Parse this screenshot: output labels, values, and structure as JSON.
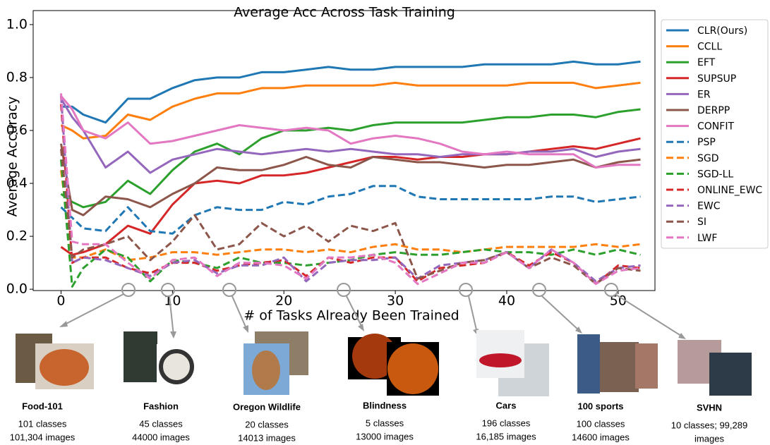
{
  "chart_data": {
    "type": "line",
    "title": "Average Acc Across Task Training",
    "xlabel": "# of Tasks Already Been Trained",
    "ylabel": "Average Accuracy",
    "x": [
      0,
      1,
      2,
      4,
      6,
      8,
      10,
      12,
      14,
      16,
      18,
      20,
      22,
      24,
      26,
      28,
      30,
      32,
      34,
      36,
      38,
      40,
      42,
      44,
      46,
      48,
      50,
      52
    ],
    "xlim": [
      -2.5,
      53.3
    ],
    "ylim": [
      -0.005,
      1.053
    ],
    "xticks": [
      0,
      10,
      20,
      30,
      40,
      50
    ],
    "yticks": [
      {
        "value": 0,
        "label": "0.0"
      },
      {
        "value": 0.2,
        "label": "0.2"
      },
      {
        "value": 0.4,
        "label": "0.4"
      },
      {
        "value": 0.6,
        "label": "0.6"
      },
      {
        "value": 0.8,
        "label": "0.8"
      },
      {
        "value": 1,
        "label": "1.0"
      }
    ],
    "legend": "outside-right",
    "series": [
      {
        "name": "CLR(Ours)",
        "color": "#1f77b4",
        "dashed": false,
        "values": [
          0.69,
          0.69,
          0.66,
          0.63,
          0.72,
          0.72,
          0.76,
          0.79,
          0.8,
          0.8,
          0.82,
          0.82,
          0.83,
          0.84,
          0.83,
          0.83,
          0.84,
          0.84,
          0.84,
          0.84,
          0.85,
          0.85,
          0.85,
          0.85,
          0.86,
          0.85,
          0.85,
          0.86
        ]
      },
      {
        "name": "CCLL",
        "color": "#ff7f0e",
        "dashed": false,
        "values": [
          0.62,
          0.6,
          0.57,
          0.58,
          0.66,
          0.64,
          0.69,
          0.72,
          0.74,
          0.74,
          0.76,
          0.76,
          0.77,
          0.77,
          0.77,
          0.77,
          0.78,
          0.77,
          0.77,
          0.77,
          0.77,
          0.77,
          0.78,
          0.78,
          0.78,
          0.76,
          0.77,
          0.78
        ]
      },
      {
        "name": "EFT",
        "color": "#2ca02c",
        "dashed": false,
        "values": [
          0.36,
          0.33,
          0.31,
          0.33,
          0.41,
          0.36,
          0.45,
          0.52,
          0.55,
          0.51,
          0.57,
          0.6,
          0.6,
          0.61,
          0.6,
          0.62,
          0.63,
          0.63,
          0.63,
          0.63,
          0.64,
          0.65,
          0.65,
          0.66,
          0.66,
          0.65,
          0.67,
          0.68
        ]
      },
      {
        "name": "SUPSUP",
        "color": "#d62728",
        "dashed": false,
        "values": [
          0.16,
          0.13,
          0.14,
          0.17,
          0.24,
          0.21,
          0.32,
          0.4,
          0.41,
          0.4,
          0.43,
          0.43,
          0.44,
          0.46,
          0.48,
          0.5,
          0.5,
          0.49,
          0.5,
          0.5,
          0.51,
          0.51,
          0.52,
          0.53,
          0.54,
          0.53,
          0.55,
          0.57
        ]
      },
      {
        "name": "ER",
        "color": "#9467bd",
        "dashed": false,
        "values": [
          0.72,
          0.65,
          0.6,
          0.46,
          0.52,
          0.44,
          0.49,
          0.51,
          0.53,
          0.52,
          0.51,
          0.52,
          0.53,
          0.52,
          0.53,
          0.52,
          0.51,
          0.51,
          0.5,
          0.51,
          0.51,
          0.51,
          0.52,
          0.52,
          0.53,
          0.5,
          0.52,
          0.53
        ]
      },
      {
        "name": "DERPP",
        "color": "#8c564b",
        "dashed": false,
        "values": [
          0.55,
          0.3,
          0.28,
          0.35,
          0.34,
          0.31,
          0.36,
          0.4,
          0.46,
          0.45,
          0.45,
          0.47,
          0.5,
          0.47,
          0.46,
          0.5,
          0.49,
          0.48,
          0.48,
          0.47,
          0.46,
          0.47,
          0.47,
          0.48,
          0.49,
          0.46,
          0.48,
          0.49
        ]
      },
      {
        "name": "CONFIT",
        "color": "#e377c2",
        "dashed": false,
        "values": [
          0.73,
          0.68,
          0.6,
          0.57,
          0.63,
          0.55,
          0.56,
          0.58,
          0.6,
          0.62,
          0.61,
          0.6,
          0.61,
          0.6,
          0.55,
          0.57,
          0.58,
          0.57,
          0.55,
          0.52,
          0.51,
          0.52,
          0.51,
          0.51,
          0.51,
          0.46,
          0.47,
          0.47
        ]
      },
      {
        "name": "PSP",
        "color": "#1f77b4",
        "dashed": true,
        "values": [
          0.31,
          0.27,
          0.23,
          0.22,
          0.31,
          0.22,
          0.21,
          0.28,
          0.31,
          0.3,
          0.3,
          0.33,
          0.32,
          0.35,
          0.36,
          0.39,
          0.39,
          0.35,
          0.34,
          0.34,
          0.34,
          0.34,
          0.34,
          0.35,
          0.35,
          0.33,
          0.34,
          0.35
        ]
      },
      {
        "name": "SGD",
        "color": "#ff7f0e",
        "dashed": true,
        "values": [
          0.45,
          0.12,
          0.12,
          0.15,
          0.11,
          0.12,
          0.14,
          0.14,
          0.13,
          0.14,
          0.15,
          0.15,
          0.14,
          0.15,
          0.14,
          0.16,
          0.17,
          0.15,
          0.15,
          0.14,
          0.15,
          0.16,
          0.16,
          0.16,
          0.16,
          0.17,
          0.16,
          0.17
        ]
      },
      {
        "name": "SGD-LL",
        "color": "#2ca02c",
        "dashed": true,
        "values": [
          0.49,
          0.01,
          0.08,
          0.15,
          0.12,
          0.03,
          0.11,
          0.1,
          0.08,
          0.12,
          0.1,
          0.1,
          0.09,
          0.1,
          0.11,
          0.13,
          0.14,
          0.13,
          0.13,
          0.14,
          0.15,
          0.14,
          0.14,
          0.13,
          0.15,
          0.13,
          0.15,
          0.13
        ]
      },
      {
        "name": "ONLINE_EWC",
        "color": "#d62728",
        "dashed": true,
        "values": [
          0.7,
          0.1,
          0.12,
          0.12,
          0.08,
          0.06,
          0.1,
          0.1,
          0.07,
          0.09,
          0.1,
          0.11,
          0.05,
          0.12,
          0.1,
          0.12,
          0.12,
          0.03,
          0.08,
          0.09,
          0.1,
          0.14,
          0.09,
          0.14,
          0.1,
          0.02,
          0.09,
          0.08
        ]
      },
      {
        "name": "EWC",
        "color": "#9467bd",
        "dashed": true,
        "values": [
          0.73,
          0.1,
          0.12,
          0.11,
          0.08,
          0.05,
          0.1,
          0.11,
          0.06,
          0.09,
          0.09,
          0.12,
          0.03,
          0.1,
          0.11,
          0.11,
          0.12,
          0.04,
          0.09,
          0.1,
          0.11,
          0.14,
          0.08,
          0.15,
          0.1,
          0.03,
          0.08,
          0.09
        ]
      },
      {
        "name": "SI",
        "color": "#8c564b",
        "dashed": true,
        "values": [
          0.53,
          0.12,
          0.15,
          0.17,
          0.2,
          0.11,
          0.18,
          0.28,
          0.15,
          0.17,
          0.25,
          0.2,
          0.24,
          0.18,
          0.24,
          0.22,
          0.25,
          0.04,
          0.07,
          0.1,
          0.11,
          0.14,
          0.08,
          0.12,
          0.09,
          0.02,
          0.08,
          0.07
        ]
      },
      {
        "name": "LWF",
        "color": "#e377c2",
        "dashed": true,
        "values": [
          0.74,
          0.18,
          0.17,
          0.17,
          0.1,
          0.04,
          0.11,
          0.12,
          0.05,
          0.1,
          0.1,
          0.09,
          0.04,
          0.12,
          0.12,
          0.13,
          0.1,
          0.02,
          0.06,
          0.1,
          0.1,
          0.14,
          0.08,
          0.15,
          0.1,
          0.02,
          0.07,
          0.08
        ]
      }
    ]
  },
  "datasets": [
    {
      "name": "Food-101",
      "lines": [
        "101 classes",
        "101,304 images"
      ]
    },
    {
      "name": "Fashion",
      "lines": [
        "45 classes",
        "44000 images"
      ]
    },
    {
      "name": "Oregon Wildlife",
      "lines": [
        "20 classes",
        "14013 images"
      ]
    },
    {
      "name": "Blindness",
      "lines": [
        "5 classes",
        "13000 images"
      ]
    },
    {
      "name": "Cars",
      "lines": [
        "196 classes",
        "16,185 images"
      ]
    },
    {
      "name": "100 sports",
      "lines": [
        "100 classes",
        "14600 images"
      ]
    },
    {
      "name": "SVHN",
      "lines": [
        "10 classes; 99,289",
        "images"
      ]
    }
  ]
}
